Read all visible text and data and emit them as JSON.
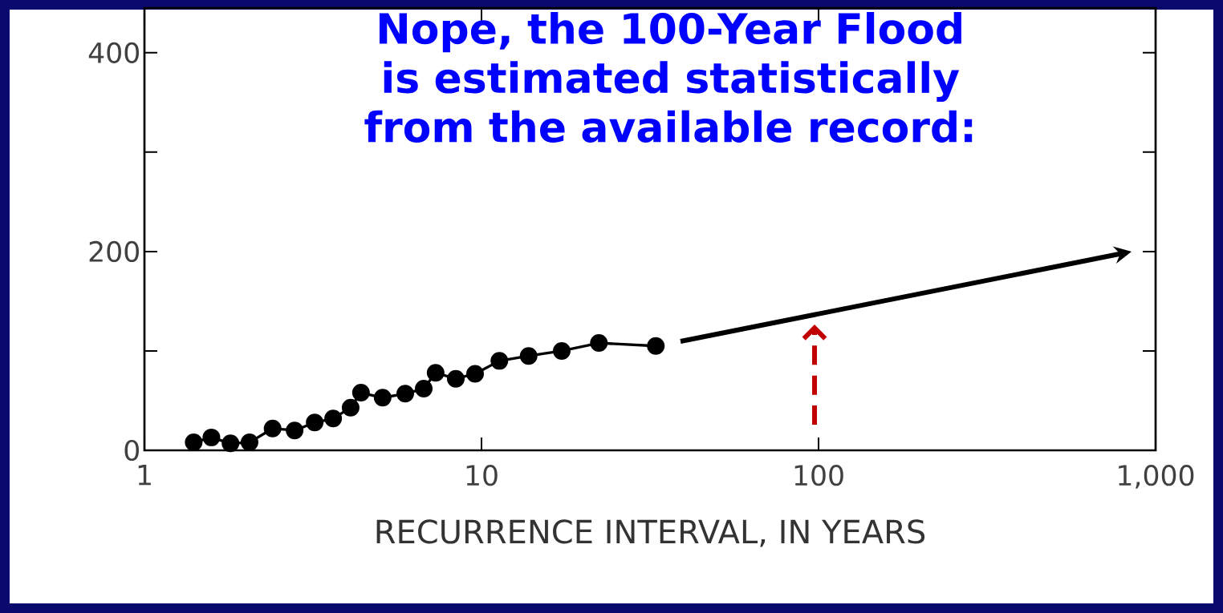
{
  "chart_data": {
    "type": "line",
    "title": "Nope, the 100-Year Flood is estimated statistically from the available record:",
    "xlabel": "RECURRENCE INTERVAL, IN YEARS",
    "log": "x",
    "grid": false,
    "xlim": [
      1,
      1000
    ],
    "xticks": [
      1,
      10,
      100,
      {
        "value": 1000,
        "label": "1,000"
      }
    ],
    "ylim": [
      0,
      445
    ],
    "yticks": [
      0,
      {
        "value": 100,
        "label": null
      },
      200,
      {
        "value": 300,
        "label": null
      },
      400
    ],
    "series": [
      {
        "type": "line",
        "marker": "circle",
        "line_style": "solid",
        "color": "#000000",
        "x": [
          1.4,
          1.58,
          1.8,
          2.05,
          2.4,
          2.79,
          3.2,
          3.63,
          4.09,
          4.39,
          5.09,
          5.94,
          6.74,
          7.31,
          8.39,
          9.57,
          11.3,
          13.8,
          17.3,
          22.3,
          32.9
        ],
        "values": [
          8,
          13,
          7,
          8,
          22,
          20,
          28,
          32,
          43,
          58,
          53,
          57,
          62,
          78,
          72,
          77,
          90,
          95,
          100,
          108,
          105
        ]
      }
    ]
  }
}
